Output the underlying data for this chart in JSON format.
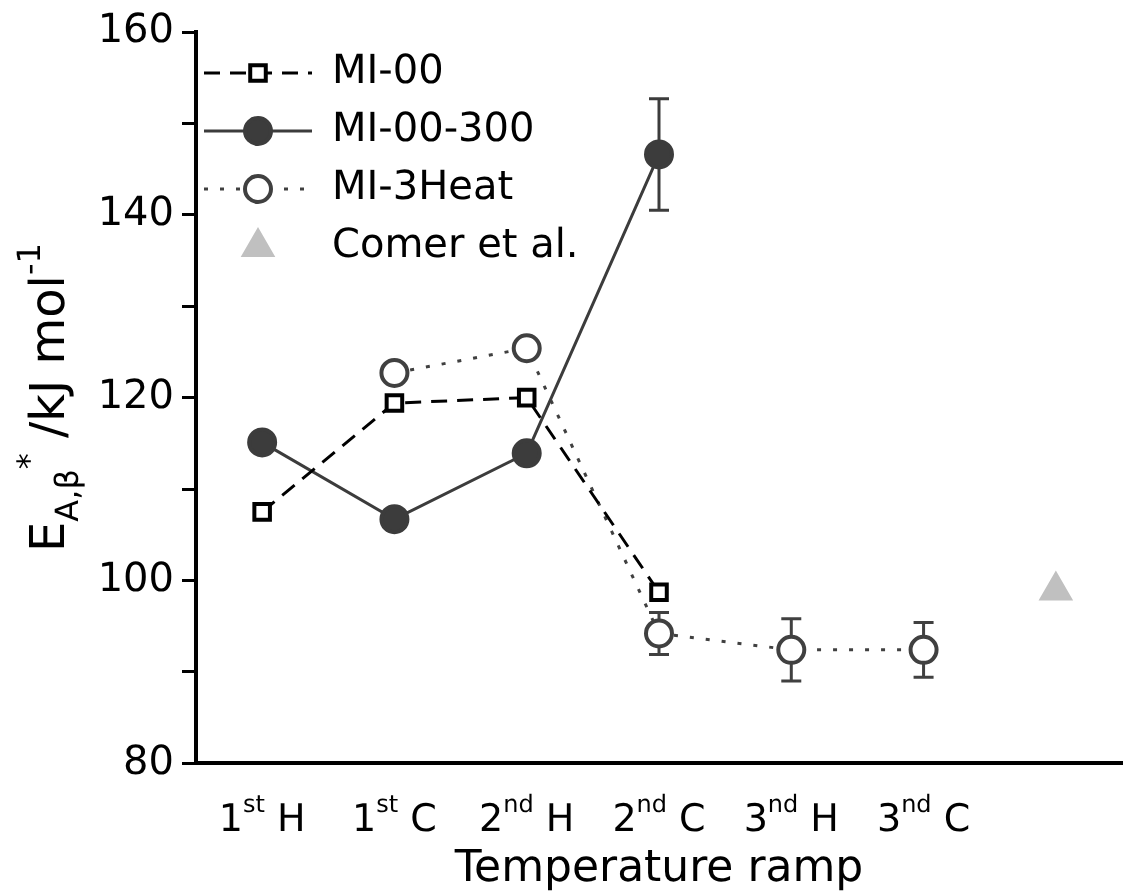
{
  "chart_data": {
    "type": "line",
    "xlabel": "Temperature ramp",
    "ylabel": "E$_{A,β}$$^{*}$ /kJ mol$^{-1}$",
    "categories": [
      "1$^{st}$ H",
      "1$^{st}$ C",
      "2$^{nd}$ H",
      "2$^{nd}$ C",
      "3$^{nd}$ H",
      "3$^{nd}$ C",
      null
    ],
    "ylim": [
      80,
      160
    ],
    "yticks": [
      80,
      {
        "value": 90,
        "label": null
      },
      100,
      {
        "value": 110,
        "label": null
      },
      120,
      {
        "value": 130,
        "label": null
      },
      140,
      {
        "value": 150,
        "label": null
      },
      160
    ],
    "grid": false,
    "legend": "top left",
    "series": [
      {
        "name": "MI-00",
        "type": "line",
        "color": "#000000",
        "marker": "square",
        "line_style": "dashed",
        "values": [
          107.5,
          119.4,
          120.0,
          98.7,
          null,
          null,
          null
        ]
      },
      {
        "name": "MI-00-300",
        "type": "line",
        "color": "#3c3c3c",
        "marker": "circle",
        "line_style": "solid",
        "values": [
          115.1,
          106.7,
          113.9,
          146.6,
          null,
          null,
          null
        ],
        "errors": [
          null,
          null,
          null,
          6.1,
          null,
          null,
          null
        ]
      },
      {
        "name": "MI-3Heat",
        "type": "line",
        "color": "#404040",
        "marker": "circle",
        "line_style": "dotted",
        "values": [
          null,
          122.7,
          125.4,
          94.2,
          92.4,
          92.4,
          null
        ],
        "errors": [
          null,
          null,
          null,
          2.3,
          3.4,
          3.0,
          null
        ]
      },
      {
        "name": "Comer et al.",
        "type": "scatter",
        "color": "#c0c0c0",
        "marker": "triangle",
        "values": [
          null,
          null,
          null,
          null,
          null,
          null,
          98.9
        ]
      }
    ]
  }
}
